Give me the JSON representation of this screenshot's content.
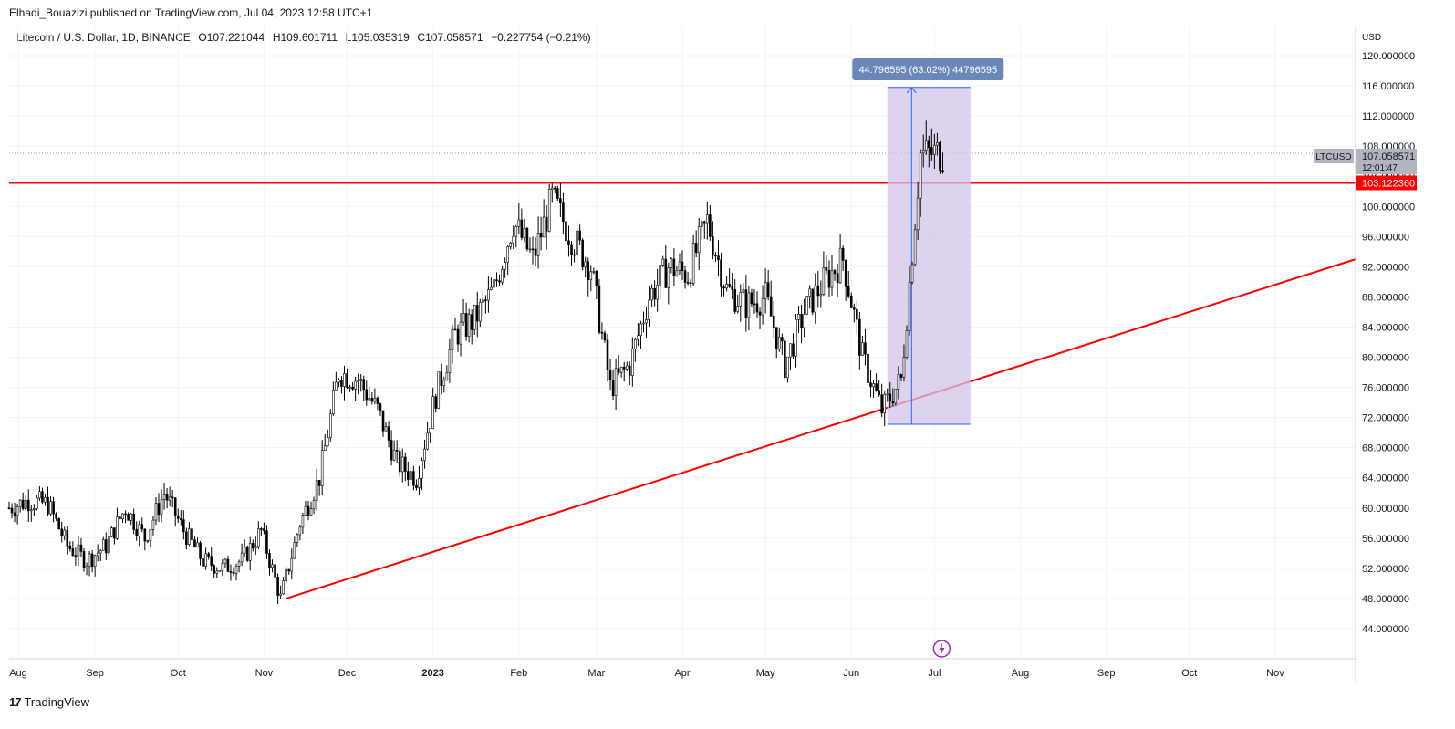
{
  "header": {
    "published": "Elhadi_Bouazizi published on TradingView.com, Jul 04, 2023 12:58 UTC+1"
  },
  "legend": {
    "symbol": "Litecoin / U.S. Dollar, 1D, BINANCE",
    "open": "O107.221044",
    "high": "H109.601711",
    "low": "L105.035319",
    "close": "C107.058571",
    "change": "−0.227754 (−0.21%)"
  },
  "footer": {
    "brand": "TradingView",
    "logo": "17"
  },
  "colors": {
    "up": "#ffffff",
    "down": "#000000",
    "line": "#ff0000",
    "range_fill": "#d1c4e9",
    "range_border": "#2962ff",
    "label_bg": "#6b86b9"
  },
  "chart_data": {
    "type": "candlestick",
    "currency_label": "USD",
    "ylim": [
      40,
      124
    ],
    "y_ticks": [
      "44.000000",
      "48.000000",
      "52.000000",
      "56.000000",
      "60.000000",
      "64.000000",
      "68.000000",
      "72.000000",
      "76.000000",
      "80.000000",
      "84.000000",
      "88.000000",
      "92.000000",
      "96.000000",
      "100.000000",
      "104.000000",
      "108.000000",
      "112.000000",
      "116.000000",
      "120.000000"
    ],
    "x_ticks": [
      "Aug",
      "Sep",
      "Oct",
      "Nov",
      "Dec",
      "2023",
      "Feb",
      "Mar",
      "Apr",
      "May",
      "Jun",
      "Jul",
      "Aug",
      "Sep",
      "Oct",
      "Nov"
    ],
    "x_start": "2022-08-01",
    "x_end": "2023-11-30",
    "series_close": [
      [
        "2022-08-01",
        60
      ],
      [
        "2022-08-08",
        61
      ],
      [
        "2022-08-15",
        60.5
      ],
      [
        "2022-08-22",
        55
      ],
      [
        "2022-08-29",
        53
      ],
      [
        "2022-09-05",
        55
      ],
      [
        "2022-09-12",
        60
      ],
      [
        "2022-09-19",
        56
      ],
      [
        "2022-09-26",
        62
      ],
      [
        "2022-10-03",
        57
      ],
      [
        "2022-10-10",
        53
      ],
      [
        "2022-10-17",
        52
      ],
      [
        "2022-10-24",
        53
      ],
      [
        "2022-10-31",
        57
      ],
      [
        "2022-11-07",
        48
      ],
      [
        "2022-11-14",
        58
      ],
      [
        "2022-11-21",
        64
      ],
      [
        "2022-11-28",
        78
      ],
      [
        "2022-12-05",
        77
      ],
      [
        "2022-12-12",
        73
      ],
      [
        "2022-12-19",
        66
      ],
      [
        "2022-12-26",
        64
      ],
      [
        "2023-01-02",
        75
      ],
      [
        "2023-01-09",
        83
      ],
      [
        "2023-01-16",
        85
      ],
      [
        "2023-01-23",
        89
      ],
      [
        "2023-01-30",
        98
      ],
      [
        "2023-02-06",
        93
      ],
      [
        "2023-02-13",
        101
      ],
      [
        "2023-02-20",
        96
      ],
      [
        "2023-02-27",
        92
      ],
      [
        "2023-03-06",
        76
      ],
      [
        "2023-03-13",
        79
      ],
      [
        "2023-03-20",
        88
      ],
      [
        "2023-03-27",
        92
      ],
      [
        "2023-04-03",
        91
      ],
      [
        "2023-04-10",
        98
      ],
      [
        "2023-04-17",
        89
      ],
      [
        "2023-04-24",
        87
      ],
      [
        "2023-05-01",
        88
      ],
      [
        "2023-05-08",
        79
      ],
      [
        "2023-05-15",
        86
      ],
      [
        "2023-05-22",
        90
      ],
      [
        "2023-05-29",
        93
      ],
      [
        "2023-06-05",
        80
      ],
      [
        "2023-06-12",
        73
      ],
      [
        "2023-06-19",
        77
      ],
      [
        "2023-06-26",
        107
      ],
      [
        "2023-07-03",
        107.06
      ]
    ],
    "current_price": {
      "label": "LTCUSD",
      "price": "107.058571",
      "countdown": "12:01:47"
    },
    "horizontal_line": {
      "price": 103.12236,
      "label": "103.122360"
    },
    "trendline": {
      "points": [
        [
          "2022-11-09",
          48
        ],
        [
          "2023-11-30",
          93
        ]
      ]
    },
    "measure": {
      "from_date": "2023-06-14",
      "to_date": "2023-07-14",
      "low": 71.1,
      "high": 115.8,
      "label": "44.796595 (63.02%) 44796595"
    },
    "event_icon": "lightning-icon"
  }
}
